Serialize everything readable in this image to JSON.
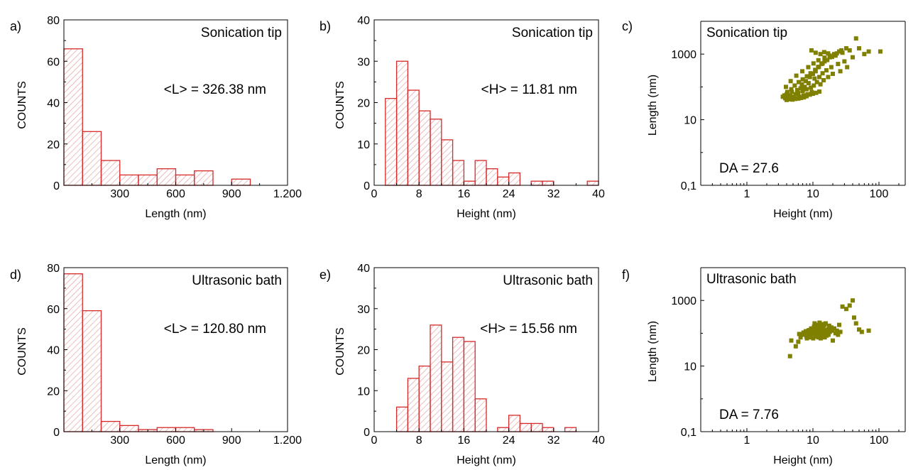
{
  "colors": {
    "bar_stroke": "#d62a2a",
    "bar_hatch": "#e29a9a",
    "point": "#808000"
  },
  "chart_data": [
    {
      "panel": "a)",
      "type": "bar",
      "bins": "histogram",
      "annotation": "Sonication tip",
      "stat": "<L> = 326.38 nm",
      "xlabel": "Length (nm)",
      "ylabel": "COUNTS",
      "xlim": [
        0,
        1200
      ],
      "ylim": [
        0,
        80
      ],
      "xticks": [
        300,
        600,
        900,
        1200
      ],
      "xticklabels": [
        "300",
        "600",
        "900",
        "1.200"
      ],
      "yticks": [
        0,
        20,
        40,
        60,
        80
      ],
      "yticklabels": [
        "0",
        "20",
        "40",
        "60",
        "80"
      ],
      "bin_edges": [
        0,
        100,
        200,
        300,
        400,
        500,
        600,
        700,
        800,
        900,
        1000
      ],
      "values": [
        66,
        26,
        12,
        5,
        5,
        8,
        5,
        7,
        0,
        3
      ]
    },
    {
      "panel": "b)",
      "type": "bar",
      "bins": "histogram",
      "annotation": "Sonication tip",
      "stat": "<H> = 11.81 nm",
      "xlabel": "Height (nm)",
      "ylabel": "COUNTS",
      "xlim": [
        0,
        40
      ],
      "ylim": [
        0,
        40
      ],
      "xticks": [
        0,
        8,
        16,
        24,
        32,
        40
      ],
      "xticklabels": [
        "0",
        "8",
        "16",
        "24",
        "32",
        "40"
      ],
      "yticks": [
        0,
        10,
        20,
        30,
        40
      ],
      "yticklabels": [
        "0",
        "10",
        "20",
        "30",
        "40"
      ],
      "bin_edges": [
        2,
        4,
        6,
        8,
        10,
        12,
        14,
        16,
        18,
        20,
        22,
        24,
        26,
        28,
        30,
        32,
        34,
        36,
        38,
        40
      ],
      "values": [
        21,
        30,
        23,
        18,
        16,
        11,
        6,
        1,
        6,
        4,
        2,
        3,
        0,
        1,
        1,
        0,
        0,
        0,
        1
      ]
    },
    {
      "panel": "c)",
      "type": "scatter",
      "annotation": "Sonication tip",
      "stat": "DA = 27.6",
      "xlabel": "Height (nm)",
      "ylabel": "Length (nm)",
      "xscale": "log",
      "yscale": "log",
      "xlim": [
        0.2,
        250
      ],
      "ylim": [
        0.1,
        10000
      ],
      "xticks": [
        1,
        10,
        100
      ],
      "xticklabels": [
        "1",
        "10",
        "100"
      ],
      "yticks": [
        0.1,
        10,
        1000
      ],
      "yticklabels": [
        "0,1",
        "10",
        "1000"
      ],
      "points": [
        [
          3.5,
          50
        ],
        [
          3.8,
          45
        ],
        [
          4,
          60
        ],
        [
          4.2,
          48
        ],
        [
          4.5,
          55
        ],
        [
          4.8,
          70
        ],
        [
          5,
          50
        ],
        [
          5.2,
          45
        ],
        [
          5.5,
          60
        ],
        [
          5.8,
          80
        ],
        [
          6,
          65
        ],
        [
          6.2,
          50
        ],
        [
          6.5,
          90
        ],
        [
          6.8,
          120
        ],
        [
          7,
          75
        ],
        [
          7.2,
          55
        ],
        [
          7.5,
          100
        ],
        [
          7.8,
          150
        ],
        [
          8,
          85
        ],
        [
          8.3,
          60
        ],
        [
          8.6,
          130
        ],
        [
          9,
          200
        ],
        [
          9.3,
          95
        ],
        [
          9.6,
          70
        ],
        [
          10,
          250
        ],
        [
          10.3,
          110
        ],
        [
          10.6,
          180
        ],
        [
          11,
          300
        ],
        [
          11.5,
          140
        ],
        [
          12,
          400
        ],
        [
          12.5,
          200
        ],
        [
          13,
          120
        ],
        [
          13.5,
          500
        ],
        [
          14,
          260
        ],
        [
          14.5,
          160
        ],
        [
          15,
          600
        ],
        [
          16,
          320
        ],
        [
          17,
          200
        ],
        [
          18,
          800
        ],
        [
          19,
          400
        ],
        [
          20,
          250
        ],
        [
          22,
          900
        ],
        [
          24,
          500
        ],
        [
          26,
          300
        ],
        [
          28,
          1100
        ],
        [
          30,
          600
        ],
        [
          33,
          400
        ],
        [
          36,
          1300
        ],
        [
          40,
          800
        ],
        [
          45,
          3000
        ],
        [
          50,
          1500
        ],
        [
          60,
          1000
        ],
        [
          70,
          1200
        ],
        [
          105,
          1200
        ],
        [
          4,
          40
        ],
        [
          4.4,
          42
        ],
        [
          4.9,
          41
        ],
        [
          5.4,
          43
        ],
        [
          6,
          44
        ],
        [
          6.6,
          46
        ],
        [
          7.3,
          48
        ],
        [
          8,
          52
        ],
        [
          9,
          58
        ],
        [
          10,
          62
        ],
        [
          11.2,
          66
        ],
        [
          12.5,
          72
        ],
        [
          3.7,
          55
        ],
        [
          4.1,
          70
        ],
        [
          4.7,
          85
        ],
        [
          5.3,
          110
        ],
        [
          6.1,
          140
        ],
        [
          7,
          170
        ],
        [
          8.1,
          210
        ],
        [
          9.2,
          260
        ],
        [
          10.8,
          330
        ],
        [
          12.3,
          410
        ],
        [
          14,
          520
        ],
        [
          16.5,
          660
        ],
        [
          19.5,
          820
        ],
        [
          23,
          1050
        ],
        [
          27,
          1300
        ],
        [
          32,
          1500
        ],
        [
          3.9,
          100
        ],
        [
          4.6,
          150
        ],
        [
          5.6,
          220
        ],
        [
          6.9,
          300
        ],
        [
          8.5,
          400
        ],
        [
          10.2,
          520
        ],
        [
          12.1,
          650
        ],
        [
          15,
          780
        ],
        [
          18,
          900
        ],
        [
          21,
          1000
        ],
        [
          25,
          1200
        ],
        [
          9.5,
          1300
        ],
        [
          11,
          1100
        ],
        [
          13,
          1000
        ],
        [
          14.8,
          1150
        ],
        [
          17,
          1050
        ]
      ]
    },
    {
      "panel": "d)",
      "type": "bar",
      "bins": "histogram",
      "annotation": "Ultrasonic bath",
      "stat": "<L> = 120.80 nm",
      "xlabel": "Length (nm)",
      "ylabel": "COUNTS",
      "xlim": [
        0,
        1200
      ],
      "ylim": [
        0,
        80
      ],
      "xticks": [
        300,
        600,
        900,
        1200
      ],
      "xticklabels": [
        "300",
        "600",
        "900",
        "1.200"
      ],
      "yticks": [
        0,
        20,
        40,
        60,
        80
      ],
      "yticklabels": [
        "0",
        "20",
        "40",
        "60",
        "80"
      ],
      "bin_edges": [
        0,
        100,
        200,
        300,
        400,
        500,
        600,
        700,
        800
      ],
      "values": [
        77,
        59,
        5,
        3,
        1,
        2,
        2,
        1
      ]
    },
    {
      "panel": "e)",
      "type": "bar",
      "bins": "histogram",
      "annotation": "Ultrasonic bath",
      "stat": "<H> = 15.56 nm",
      "xlabel": "Height (nm)",
      "ylabel": "COUNTS",
      "xlim": [
        0,
        40
      ],
      "ylim": [
        0,
        40
      ],
      "xticks": [
        0,
        8,
        16,
        24,
        32,
        40
      ],
      "xticklabels": [
        "0",
        "8",
        "16",
        "24",
        "32",
        "40"
      ],
      "yticks": [
        0,
        10,
        20,
        30,
        40
      ],
      "yticklabels": [
        "0",
        "10",
        "20",
        "30",
        "40"
      ],
      "bin_edges": [
        4,
        6,
        8,
        10,
        12,
        14,
        16,
        18,
        20,
        22,
        24,
        26,
        28,
        30,
        32,
        34,
        36
      ],
      "values": [
        6,
        13,
        16,
        26,
        17,
        23,
        22,
        8,
        0,
        1,
        4,
        2,
        2,
        1,
        0,
        1
      ]
    },
    {
      "panel": "f)",
      "type": "scatter",
      "annotation": "Ultrasonic bath",
      "stat": "DA = 7.76",
      "xlabel": "Height (nm)",
      "ylabel": "Length (nm)",
      "xscale": "log",
      "yscale": "log",
      "xlim": [
        0.2,
        250
      ],
      "ylim": [
        0.1,
        10000
      ],
      "xticks": [
        1,
        10,
        100
      ],
      "xticklabels": [
        "1",
        "10",
        "100"
      ],
      "yticks": [
        0.1,
        10,
        1000
      ],
      "yticklabels": [
        "0,1",
        "10",
        "1000"
      ],
      "points": [
        [
          4.5,
          20
        ],
        [
          4.7,
          60
        ],
        [
          5.5,
          40
        ],
        [
          6,
          55
        ],
        [
          6.5,
          75
        ],
        [
          7,
          90
        ],
        [
          7.5,
          100
        ],
        [
          8,
          80
        ],
        [
          8.5,
          120
        ],
        [
          9,
          95
        ],
        [
          9.5,
          110
        ],
        [
          10,
          140
        ],
        [
          10.5,
          100
        ],
        [
          11,
          130
        ],
        [
          11.5,
          160
        ],
        [
          12,
          115
        ],
        [
          12.5,
          95
        ],
        [
          13,
          150
        ],
        [
          13.5,
          105
        ],
        [
          14,
          125
        ],
        [
          15,
          180
        ],
        [
          16,
          90
        ],
        [
          17,
          130
        ],
        [
          18,
          110
        ],
        [
          19,
          150
        ],
        [
          20,
          60
        ],
        [
          22,
          100
        ],
        [
          25,
          180
        ],
        [
          28,
          650
        ],
        [
          32,
          550
        ],
        [
          36,
          700
        ],
        [
          40,
          1000
        ],
        [
          42,
          300
        ],
        [
          45,
          200
        ],
        [
          50,
          130
        ],
        [
          55,
          110
        ],
        [
          70,
          120
        ],
        [
          6.2,
          95
        ],
        [
          7.2,
          105
        ],
        [
          8.2,
          100
        ],
        [
          9.2,
          85
        ],
        [
          10.2,
          95
        ],
        [
          11.2,
          105
        ],
        [
          12.2,
          90
        ],
        [
          13.2,
          100
        ],
        [
          14.2,
          95
        ],
        [
          15.2,
          110
        ],
        [
          16.2,
          100
        ],
        [
          17.2,
          90
        ],
        [
          7.8,
          115
        ],
        [
          8.8,
          125
        ],
        [
          9.8,
          120
        ],
        [
          10.8,
          115
        ],
        [
          11.8,
          125
        ],
        [
          12.8,
          120
        ],
        [
          13.8,
          115
        ],
        [
          14.8,
          125
        ],
        [
          8.1,
          70
        ],
        [
          9.1,
          75
        ],
        [
          10.1,
          70
        ],
        [
          11.1,
          80
        ],
        [
          12.1,
          75
        ],
        [
          13.1,
          70
        ],
        [
          14.1,
          80
        ],
        [
          15.1,
          75
        ],
        [
          16.1,
          85
        ],
        [
          9.4,
          140
        ],
        [
          10.4,
          160
        ],
        [
          11.4,
          135
        ],
        [
          12.4,
          170
        ],
        [
          13.4,
          150
        ],
        [
          14.4,
          140
        ],
        [
          10.6,
          200
        ],
        [
          11.6,
          180
        ],
        [
          12.6,
          210
        ],
        [
          13.6,
          190
        ],
        [
          15.6,
          200
        ],
        [
          17.6,
          170
        ],
        [
          19.6,
          120
        ],
        [
          21,
          140
        ],
        [
          23,
          120
        ],
        [
          24,
          90
        ],
        [
          26,
          110
        ]
      ]
    }
  ]
}
